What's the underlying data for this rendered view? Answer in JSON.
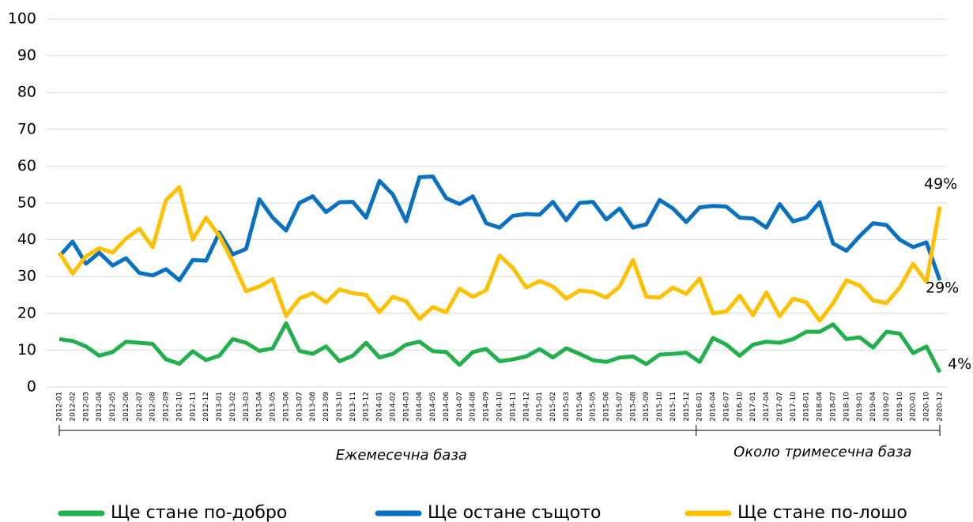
{
  "chart_data": {
    "type": "line",
    "categories": [
      "2012-01",
      "2012-02",
      "2012-03",
      "2012-04",
      "2012-05",
      "2012-06",
      "2012-07",
      "2012-08",
      "2012-09",
      "2012-10",
      "2012-11",
      "2012-12",
      "2013-01",
      "2013-02",
      "2013-03",
      "2013-04",
      "2013-05",
      "2013-06",
      "2013-07",
      "2013-08",
      "2013-09",
      "2013-10",
      "2013-11",
      "2013-12",
      "2014-01",
      "2014-02",
      "2014-03",
      "2014-04",
      "2014-05",
      "2014-06",
      "2014-07",
      "2014-08",
      "2014-09",
      "2014-10",
      "2014-11",
      "2014-12",
      "2015-01",
      "2015-02",
      "2015-03",
      "2015-04",
      "2015-05",
      "2015-06",
      "2015-07",
      "2015-08",
      "2015-09",
      "2015-10",
      "2015-11",
      "2015-12",
      "2016-01",
      "2016-04",
      "2016-07",
      "2016-10",
      "2017-01",
      "2017-04",
      "2017-07",
      "2017-10",
      "2018-01",
      "2018-04",
      "2018-07",
      "2018-10",
      "2019-01",
      "2019-04",
      "2019-07",
      "2019-10",
      "2020-01",
      "2020-10",
      "2020-12"
    ],
    "series": [
      {
        "name": "Ще стане по-добро",
        "color": "#21b04b",
        "values": [
          13,
          12.5,
          11,
          8.5,
          9.5,
          12.3,
          12,
          11.7,
          7.5,
          6.3,
          9.7,
          7.3,
          8.5,
          13,
          12,
          9.8,
          10.5,
          17.3,
          9.8,
          9,
          11,
          7,
          8.5,
          12,
          8,
          9,
          11.5,
          12.3,
          9.7,
          9.5,
          6,
          9.5,
          10.3,
          7,
          7.5,
          8.3,
          10.3,
          8,
          10.5,
          9,
          7.3,
          6.8,
          8,
          8.3,
          6.2,
          8.8,
          9,
          9.3,
          6.8,
          13.3,
          11.5,
          8.5,
          11.5,
          12.3,
          12,
          13,
          15,
          15,
          17,
          13,
          13.5,
          10.7,
          15,
          14.5,
          9.2,
          11,
          4
        ],
        "value_labels": [
          null,
          null,
          null,
          null,
          null,
          null,
          null,
          null,
          null,
          null,
          null,
          null,
          null,
          null,
          null,
          null,
          null,
          null,
          null,
          null,
          null,
          null,
          null,
          null,
          null,
          null,
          null,
          null,
          null,
          null,
          null,
          null,
          null,
          null,
          null,
          null,
          null,
          null,
          null,
          null,
          null,
          null,
          null,
          null,
          null,
          null,
          null,
          null,
          null,
          null,
          null,
          null,
          null,
          null,
          null,
          null,
          null,
          null,
          null,
          null,
          null,
          null,
          null,
          null,
          null,
          null,
          "4%"
        ]
      },
      {
        "name": "Ще остане същото",
        "color": "#0a70c0",
        "values": [
          35.5,
          39.5,
          33.5,
          36.5,
          33,
          35,
          31,
          30.3,
          32,
          29,
          34.5,
          34.3,
          42,
          36,
          37.5,
          51,
          46,
          42.5,
          50,
          51.8,
          47.5,
          50.2,
          50.3,
          46,
          56,
          52.3,
          45,
          57,
          57.2,
          51.3,
          49.7,
          51.8,
          44.5,
          43.3,
          46.5,
          47,
          46.8,
          50.3,
          45.3,
          50,
          50.3,
          45.5,
          48.5,
          43.3,
          44.2,
          50.8,
          48.5,
          44.8,
          48.8,
          49.2,
          49,
          46,
          45.8,
          43.3,
          49.7,
          45,
          46,
          50.2,
          39,
          37,
          41,
          44.5,
          44,
          40,
          38,
          39.3,
          29
        ],
        "value_labels": [
          null,
          null,
          null,
          null,
          null,
          null,
          null,
          null,
          null,
          null,
          null,
          null,
          null,
          null,
          null,
          null,
          null,
          null,
          null,
          null,
          null,
          null,
          null,
          null,
          null,
          null,
          null,
          null,
          null,
          null,
          null,
          null,
          null,
          null,
          null,
          null,
          null,
          null,
          null,
          null,
          null,
          null,
          null,
          null,
          null,
          null,
          null,
          null,
          null,
          null,
          null,
          null,
          null,
          null,
          null,
          null,
          null,
          null,
          null,
          null,
          null,
          null,
          null,
          null,
          null,
          null,
          "29%"
        ]
      },
      {
        "name": "Ще стане по-лошо",
        "color": "#ffc000",
        "values": [
          36.5,
          30.8,
          35.5,
          37.7,
          36.5,
          40.3,
          43,
          38,
          50.8,
          54.3,
          40,
          46,
          41,
          34,
          26,
          27.3,
          29.3,
          19.3,
          24,
          25.5,
          23,
          26.5,
          25.5,
          25,
          20.3,
          24.5,
          23.3,
          18.5,
          21.7,
          20.3,
          26.7,
          24.5,
          26.3,
          35.7,
          32.3,
          27,
          28.8,
          27.3,
          24,
          26.2,
          25.8,
          24.3,
          27.3,
          34.5,
          24.5,
          24.3,
          27,
          25.3,
          29.5,
          20,
          20.5,
          24.8,
          19.5,
          25.7,
          19.2,
          24,
          23,
          18,
          22.7,
          29,
          27.5,
          23.5,
          22.8,
          27,
          33.5,
          28.5,
          49
        ],
        "value_labels": [
          null,
          null,
          null,
          null,
          null,
          null,
          null,
          null,
          null,
          null,
          null,
          null,
          null,
          null,
          null,
          null,
          null,
          null,
          null,
          null,
          null,
          null,
          null,
          null,
          null,
          null,
          null,
          null,
          null,
          null,
          null,
          null,
          null,
          null,
          null,
          null,
          null,
          null,
          null,
          null,
          null,
          null,
          null,
          null,
          null,
          null,
          null,
          null,
          null,
          null,
          null,
          null,
          null,
          null,
          null,
          null,
          null,
          null,
          null,
          null,
          null,
          null,
          null,
          null,
          null,
          null,
          "49%"
        ]
      }
    ],
    "groups": [
      "Ежемесечна база",
      "Около тримесечна база"
    ],
    "ylim": [
      0,
      100
    ],
    "yticks": [
      0,
      10,
      20,
      30,
      40,
      50,
      60,
      70,
      80,
      90,
      100
    ],
    "grid": true,
    "legend": "bottom"
  }
}
